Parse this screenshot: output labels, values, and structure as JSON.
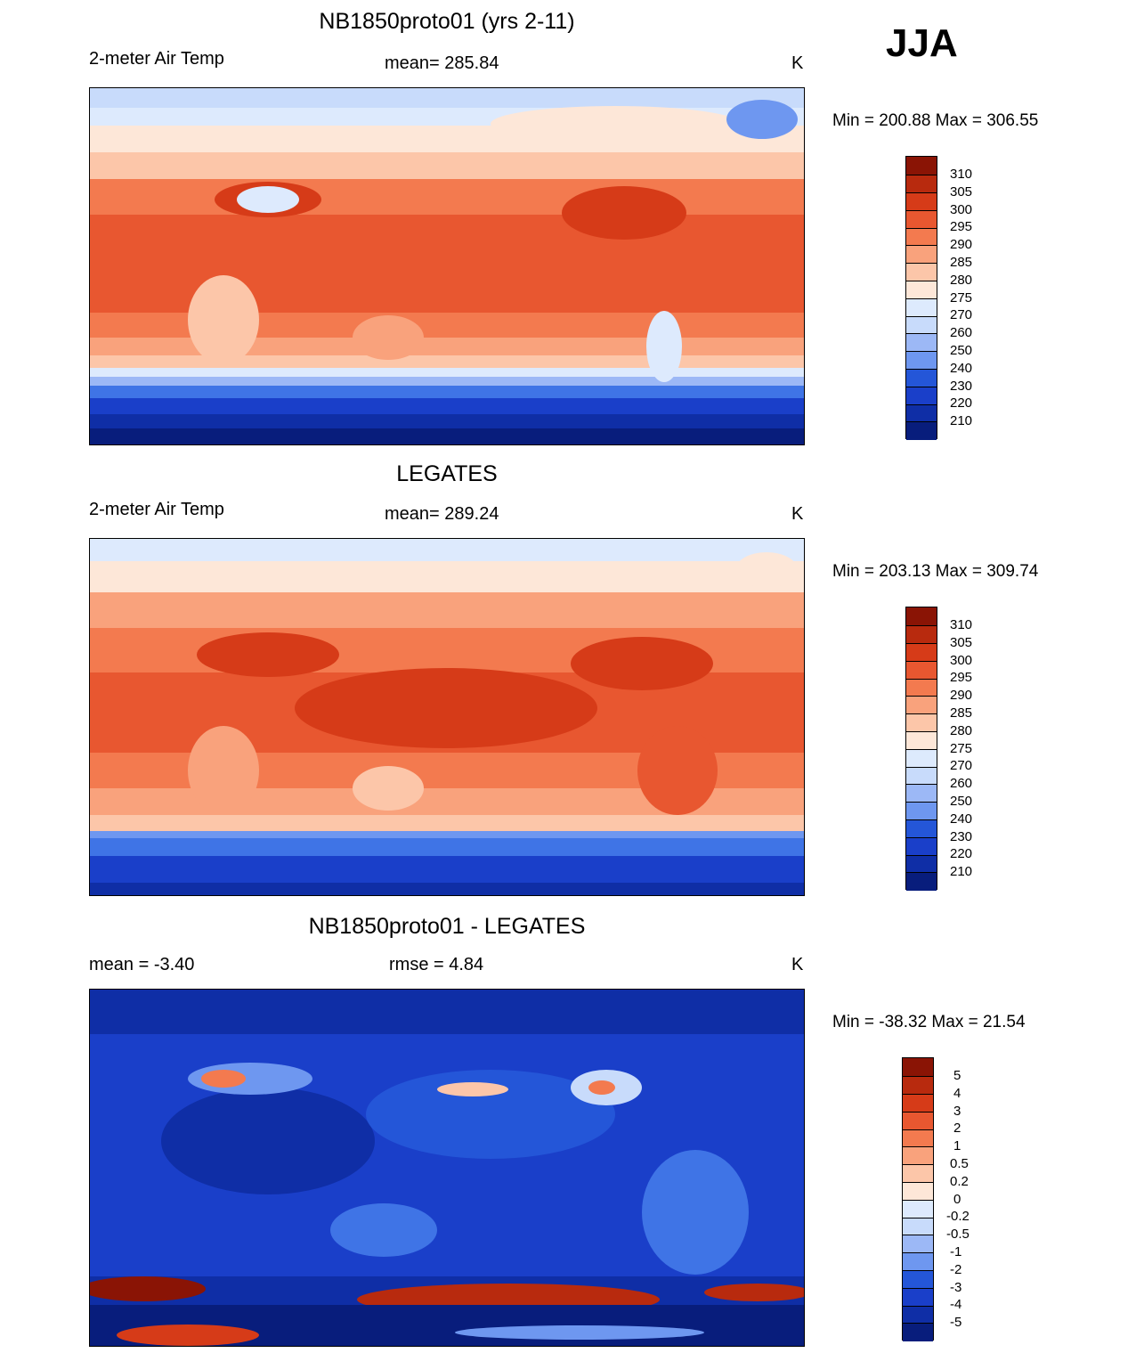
{
  "season": "JJA",
  "units": "K",
  "colors": {
    "temp": [
      "#081d7c",
      "#0f2ea6",
      "#1a3fc9",
      "#2456d8",
      "#3f74e6",
      "#6e97f0",
      "#9cb8f6",
      "#c8dbfb",
      "#ddeafd",
      "#fde7d8",
      "#fcc6a9",
      "#f9a27c",
      "#f37a4f",
      "#e85730",
      "#d63b18",
      "#b82a0e",
      "#8a1405"
    ],
    "diff": [
      "#081d7c",
      "#0f2ea6",
      "#1a3fc9",
      "#2456d8",
      "#3f74e6",
      "#6e97f0",
      "#9cb8f6",
      "#c8dbfb",
      "#ddeafd",
      "#fde7d8",
      "#fcc6a9",
      "#f9a27c",
      "#f37a4f",
      "#e85730",
      "#d63b18",
      "#b82a0e",
      "#8a1405"
    ]
  },
  "panels": [
    {
      "title": "NB1850proto01 (yrs 2-11)",
      "left_label": "2-meter Air Temp",
      "center_label": "mean= 285.84",
      "units": "K",
      "min_max": "Min = 200.88 Max = 306.55",
      "colorbar_labels": [
        "310",
        "305",
        "300",
        "295",
        "290",
        "285",
        "280",
        "275",
        "270",
        "260",
        "250",
        "240",
        "230",
        "220",
        "210"
      ]
    },
    {
      "title": "LEGATES",
      "left_label": "2-meter Air Temp",
      "center_label": "mean= 289.24",
      "units": "K",
      "min_max": "Min = 203.13 Max = 309.74",
      "colorbar_labels": [
        "310",
        "305",
        "300",
        "295",
        "290",
        "285",
        "280",
        "275",
        "270",
        "260",
        "250",
        "240",
        "230",
        "220",
        "210"
      ]
    },
    {
      "title": "NB1850proto01 - LEGATES",
      "left_label": "mean =  -3.40",
      "center_label": "rmse =   4.84",
      "units": "K",
      "min_max": "Min = -38.32 Max =  21.54",
      "colorbar_labels": [
        "5",
        "4",
        "3",
        "2",
        "1",
        "0.5",
        "0.2",
        "0",
        "-0.2",
        "-0.5",
        "-1",
        "-2",
        "-3",
        "-4",
        "-5"
      ]
    }
  ]
}
